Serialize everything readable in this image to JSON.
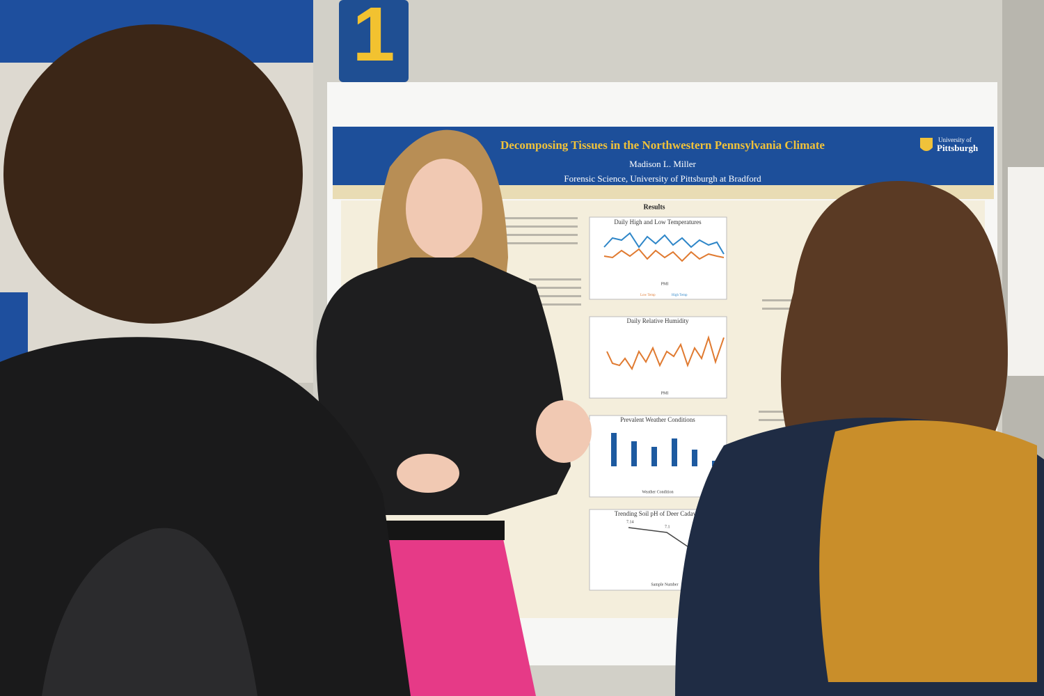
{
  "sign": {
    "label": "1"
  },
  "poster": {
    "title": "Decomposing Tissues in the Northwestern Pennsylvania Climate",
    "author": "Madison L. Miller",
    "affiliation": "Forensic Science, University of Pittsburgh at Bradford",
    "logo": {
      "line1": "University of",
      "line2": "Pittsburgh"
    },
    "results_heading": "Results",
    "charts": [
      {
        "title": "Daily High and Low Temperatures",
        "xlabel": "PMI",
        "legend": [
          "Low Temp",
          "High Temp"
        ]
      },
      {
        "title": "Daily Relative Humidity",
        "xlabel": "PMI"
      },
      {
        "title": "Prevalent Weather Conditions",
        "xlabel": "Weather Condition"
      },
      {
        "title": "Trending Soil pH of Deer Cadaver",
        "xlabel": "Sample Number",
        "point_labels": [
          "7.14",
          "7.1"
        ]
      }
    ]
  }
}
